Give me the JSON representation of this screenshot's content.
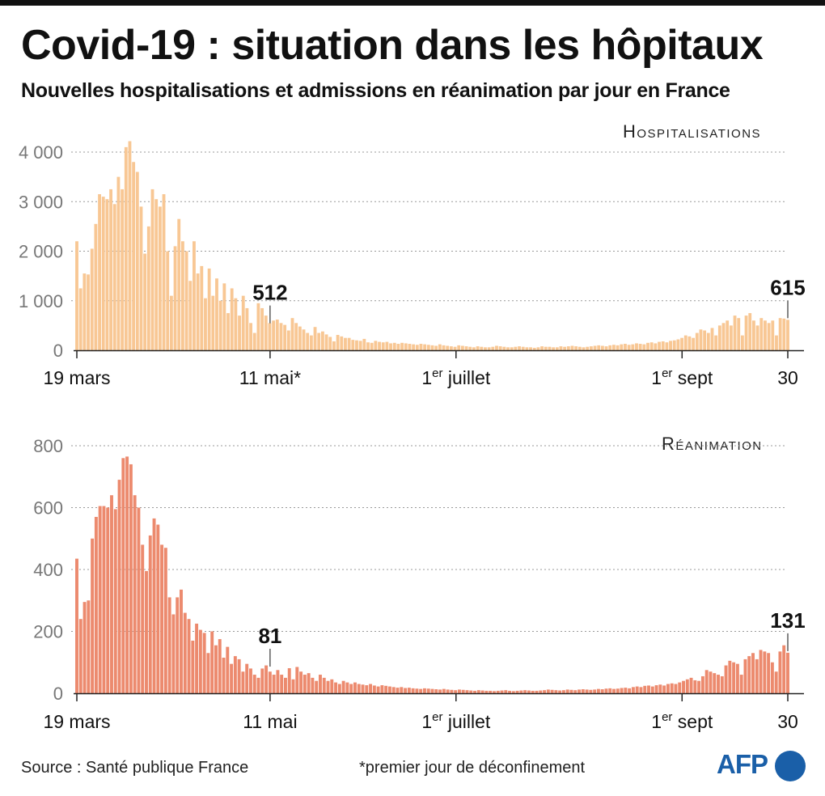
{
  "header": {
    "title": "Covid-19 : situation dans les hôpitaux",
    "subtitle": "Nouvelles hospitalisations et admissions en réanimation par jour en France"
  },
  "footer": {
    "source": "Source : Santé publique France",
    "note": "*premier jour de déconfinement",
    "logo": "AFP"
  },
  "colors": {
    "hospitalisations": "#f8c794",
    "reanimation": "#ec8a6e",
    "grid": "#999999",
    "afp_blue": "#1a5fa8"
  },
  "chart_data": [
    {
      "type": "bar",
      "title": "Hospitalisations",
      "ylim": [
        0,
        4300
      ],
      "yticks": [
        0,
        1000,
        2000,
        3000,
        4000
      ],
      "ytick_labels": [
        "0",
        "1 000",
        "2 000",
        "3 000",
        "4 000"
      ],
      "x_start": "2020-03-19",
      "x_end": "2020-09-30",
      "xticks": [
        {
          "date": "2020-03-19",
          "label": "19 mars"
        },
        {
          "date": "2020-05-11",
          "label": "11 mai*"
        },
        {
          "date": "2020-07-01",
          "label": "1er juillet"
        },
        {
          "date": "2020-09-01",
          "label": "1er sept"
        },
        {
          "date": "2020-09-30",
          "label": "30"
        }
      ],
      "annotations": [
        {
          "date": "2020-05-11",
          "value": 512,
          "label": "512"
        },
        {
          "date": "2020-09-30",
          "value": 615,
          "label": "615"
        }
      ],
      "grid": true,
      "values": [
        2200,
        1250,
        1550,
        1530,
        2050,
        2550,
        3150,
        3100,
        3050,
        3250,
        2950,
        3500,
        3250,
        4100,
        4220,
        3800,
        3600,
        2900,
        1950,
        2500,
        3250,
        3050,
        2900,
        3150,
        2000,
        1100,
        2100,
        2650,
        2200,
        2000,
        1400,
        2200,
        1550,
        1700,
        1050,
        1650,
        1100,
        1450,
        1000,
        1350,
        750,
        1250,
        1050,
        700,
        1100,
        850,
        550,
        350,
        950,
        850,
        700,
        550,
        600,
        620,
        550,
        512,
        400,
        650,
        550,
        480,
        420,
        350,
        300,
        470,
        350,
        380,
        320,
        270,
        180,
        310,
        280,
        250,
        250,
        210,
        200,
        190,
        230,
        160,
        150,
        190,
        170,
        160,
        170,
        140,
        150,
        130,
        150,
        140,
        130,
        120,
        110,
        130,
        120,
        110,
        100,
        90,
        120,
        100,
        90,
        80,
        70,
        100,
        90,
        80,
        70,
        60,
        80,
        70,
        60,
        60,
        70,
        90,
        80,
        70,
        60,
        60,
        70,
        80,
        70,
        60,
        60,
        50,
        60,
        80,
        70,
        70,
        60,
        60,
        80,
        70,
        80,
        90,
        80,
        70,
        60,
        70,
        80,
        90,
        100,
        90,
        80,
        100,
        110,
        100,
        120,
        130,
        110,
        120,
        140,
        130,
        120,
        150,
        160,
        140,
        170,
        180,
        160,
        190,
        200,
        220,
        250,
        300,
        280,
        250,
        350,
        420,
        400,
        350,
        450,
        300,
        500,
        550,
        600,
        500,
        700,
        650,
        300,
        700,
        750,
        600,
        500,
        650,
        600,
        550,
        600,
        300,
        650,
        640,
        615
      ]
    },
    {
      "type": "bar",
      "title": "Réanimation",
      "ylim": [
        0,
        800
      ],
      "yticks": [
        0,
        200,
        400,
        600,
        800
      ],
      "ytick_labels": [
        "0",
        "200",
        "400",
        "600",
        "800"
      ],
      "x_start": "2020-03-19",
      "x_end": "2020-09-30",
      "xticks": [
        {
          "date": "2020-03-19",
          "label": "19 mars"
        },
        {
          "date": "2020-05-11",
          "label": "11 mai"
        },
        {
          "date": "2020-07-01",
          "label": "1er juillet"
        },
        {
          "date": "2020-09-01",
          "label": "1er sept"
        },
        {
          "date": "2020-09-30",
          "label": "30"
        }
      ],
      "annotations": [
        {
          "date": "2020-05-11",
          "value": 81,
          "label": "81"
        },
        {
          "date": "2020-09-30",
          "value": 131,
          "label": "131"
        }
      ],
      "grid": true,
      "values": [
        435,
        240,
        295,
        300,
        500,
        570,
        605,
        605,
        600,
        640,
        595,
        690,
        760,
        765,
        740,
        640,
        600,
        480,
        395,
        510,
        565,
        545,
        480,
        470,
        310,
        255,
        310,
        335,
        260,
        240,
        170,
        225,
        205,
        195,
        130,
        200,
        155,
        175,
        115,
        150,
        95,
        120,
        110,
        70,
        95,
        80,
        60,
        50,
        80,
        90,
        70,
        60,
        75,
        60,
        50,
        81,
        45,
        85,
        70,
        60,
        65,
        50,
        40,
        60,
        50,
        40,
        45,
        35,
        30,
        40,
        35,
        30,
        35,
        30,
        28,
        26,
        30,
        25,
        22,
        26,
        24,
        22,
        20,
        18,
        20,
        17,
        18,
        16,
        15,
        14,
        16,
        15,
        14,
        13,
        12,
        14,
        12,
        11,
        10,
        12,
        11,
        10,
        9,
        8,
        10,
        9,
        8,
        8,
        7,
        8,
        9,
        10,
        8,
        7,
        8,
        9,
        10,
        9,
        8,
        8,
        9,
        10,
        12,
        11,
        10,
        9,
        10,
        12,
        11,
        10,
        12,
        13,
        12,
        11,
        12,
        14,
        13,
        15,
        16,
        14,
        15,
        17,
        18,
        16,
        20,
        22,
        20,
        24,
        25,
        22,
        26,
        28,
        25,
        30,
        32,
        30,
        35,
        40,
        45,
        50,
        42,
        40,
        55,
        75,
        70,
        65,
        60,
        55,
        90,
        105,
        100,
        95,
        60,
        110,
        120,
        130,
        110,
        140,
        135,
        130,
        100,
        70,
        135,
        155,
        131
      ]
    }
  ]
}
